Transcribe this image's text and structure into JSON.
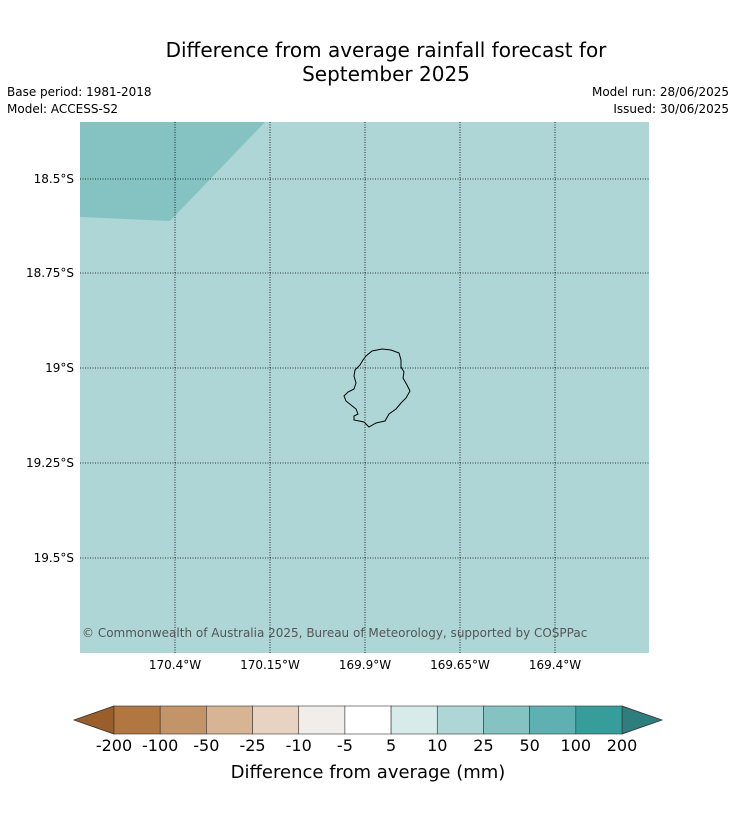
{
  "header": {
    "title_line1": "Difference from average rainfall forecast for",
    "title_line2": "September 2025",
    "base_period": "Base period: 1981-2018",
    "model": "Model: ACCESS-S2",
    "model_run": "Model run: 28/06/2025",
    "issued": "Issued: 30/06/2025"
  },
  "map": {
    "lat_labels": [
      "18.5°S",
      "18.75°S",
      "19°S",
      "19.25°S",
      "19.5°S"
    ],
    "lon_labels": [
      "170.4°W",
      "170.15°W",
      "169.9°W",
      "169.65°W",
      "169.4°W"
    ],
    "colors": {
      "background_category": "#aed6d6",
      "corner_category": "#84c3c2",
      "coastline": "#000000"
    },
    "copyright": "© Commonwealth of Australia 2025, Bureau of Meteorology, supported by COSPPac",
    "gridlines": true
  },
  "colorbar": {
    "title": "Difference from average (mm)",
    "tick_labels": [
      "-200",
      "-100",
      "-50",
      "-25",
      "-10",
      "-5",
      "5",
      "10",
      "25",
      "50",
      "100",
      "200"
    ],
    "low_extend_color": "#9a5e2a",
    "high_extend_color": "#2e7e7d",
    "segment_colors": [
      "#b07840",
      "#c29468",
      "#d6b494",
      "#e8d2c2",
      "#f1edea",
      "#ffffff",
      "#d6ebea",
      "#aed6d6",
      "#84c3c2",
      "#5fb0b0",
      "#379d9b"
    ]
  }
}
